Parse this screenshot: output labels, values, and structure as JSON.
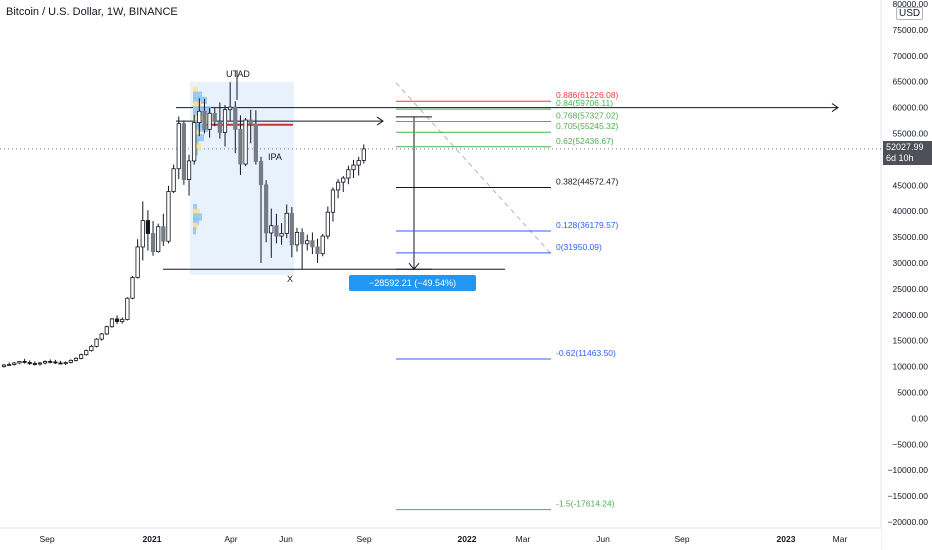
{
  "header": {
    "title": "Bitcoin / U.S. Dollar, 1W, BINANCE",
    "currency": "USD"
  },
  "price_tag": {
    "price": "52027.99",
    "countdown": "6d 10h"
  },
  "measure_label": "−28592.21 (−49.54%) −2859221",
  "annotations": {
    "utad": "UTAD",
    "ipa": "IPA",
    "x": "X"
  },
  "fib_levels": [
    {
      "label": "0.886(61226.08)",
      "value": 61226.08,
      "color": "#f23645"
    },
    {
      "label": "0.84(59706.11)",
      "value": 59706.11,
      "color": "#4caf50"
    },
    {
      "label": "0.768(57327.02)",
      "value": 57327.02,
      "color": "#4caf50"
    },
    {
      "label": "0.705(55245.32)",
      "value": 55245.32,
      "color": "#4caf50"
    },
    {
      "label": "0.62(52436.67)",
      "value": 52436.67,
      "color": "#4caf50"
    },
    {
      "label": "0.382(44572.47)",
      "value": 44572.47,
      "color": "#131722"
    },
    {
      "label": "0.128(36179.57)",
      "value": 36179.57,
      "color": "#2962ff"
    },
    {
      "label": "0(31950.09)",
      "value": 31950.09,
      "color": "#2962ff"
    },
    {
      "label": "-0.62(11463.50)",
      "value": 11463.5,
      "color": "#2962ff"
    },
    {
      "label": "-1.5(-17614.24)",
      "value": -17614.24,
      "color": "#4caf50"
    }
  ],
  "chart_data": {
    "type": "candlestick",
    "symbol": "Bitcoin / U.S. Dollar",
    "interval": "1W",
    "exchange": "BINANCE",
    "ylim": [
      -20000,
      80000
    ],
    "y_ticks": [
      "80000.00",
      "75000.00",
      "70000.00",
      "65000.00",
      "60000.00",
      "55000.00",
      "50000.00",
      "45000.00",
      "40000.00",
      "35000.00",
      "30000.00",
      "25000.00",
      "20000.00",
      "15000.00",
      "10000.00",
      "5000.00",
      "0.00",
      "−5000.00",
      "−10000.00",
      "−15000.00",
      "−20000.00"
    ],
    "x_ticks": [
      "Sep",
      "2021",
      "Apr",
      "Jun",
      "Sep",
      "2022",
      "Mar",
      "Jun",
      "Sep",
      "2023",
      "Mar"
    ],
    "candles": [
      [
        10000,
        10500,
        9800,
        10300
      ],
      [
        10300,
        10800,
        10100,
        10400
      ],
      [
        10400,
        10900,
        10200,
        10700
      ],
      [
        10700,
        11100,
        10500,
        11000
      ],
      [
        11000,
        11500,
        10600,
        10800
      ],
      [
        10800,
        11200,
        10300,
        10600
      ],
      [
        10600,
        11000,
        10200,
        10500
      ],
      [
        10500,
        10900,
        10200,
        10700
      ],
      [
        10700,
        11200,
        10400,
        11000
      ],
      [
        11000,
        11400,
        10600,
        10900
      ],
      [
        10900,
        11300,
        10500,
        10700
      ],
      [
        10700,
        11100,
        10400,
        10600
      ],
      [
        10600,
        11000,
        10300,
        10800
      ],
      [
        10800,
        11400,
        10600,
        11200
      ],
      [
        11200,
        11800,
        11000,
        11600
      ],
      [
        11600,
        12500,
        11400,
        12300
      ],
      [
        12300,
        13300,
        12100,
        13100
      ],
      [
        13100,
        14200,
        12900,
        13900
      ],
      [
        13900,
        15500,
        13700,
        15300
      ],
      [
        15300,
        16500,
        15000,
        16300
      ],
      [
        16300,
        17900,
        16100,
        17700
      ],
      [
        17700,
        19400,
        17500,
        19200
      ],
      [
        19200,
        19900,
        18200,
        18700
      ],
      [
        18700,
        19500,
        18300,
        19100
      ],
      [
        19100,
        23400,
        18900,
        23200
      ],
      [
        23200,
        27500,
        23000,
        27200
      ],
      [
        27200,
        34600,
        27000,
        33100
      ],
      [
        33100,
        41900,
        30500,
        38200
      ],
      [
        38200,
        40200,
        32400,
        35700
      ],
      [
        35700,
        38100,
        31400,
        32200
      ],
      [
        32200,
        37600,
        32000,
        37000
      ],
      [
        37000,
        39500,
        33300,
        34200
      ],
      [
        34200,
        44900,
        33800,
        43800
      ],
      [
        43800,
        49000,
        43500,
        48200
      ],
      [
        48200,
        58300,
        46200,
        56900
      ],
      [
        56900,
        57500,
        45100,
        46100
      ],
      [
        46100,
        50900,
        43000,
        49700
      ],
      [
        49700,
        58600,
        49000,
        57100
      ],
      [
        57100,
        61800,
        54500,
        59300
      ],
      [
        59300,
        61700,
        55000,
        55800
      ],
      [
        55800,
        59900,
        54200,
        58900
      ],
      [
        58900,
        60000,
        56400,
        57300
      ],
      [
        57300,
        61000,
        54000,
        55200
      ],
      [
        55200,
        60500,
        52500,
        59600
      ],
      [
        59600,
        64900,
        57500,
        60100
      ],
      [
        60100,
        61200,
        51200,
        55800
      ],
      [
        55800,
        58500,
        47000,
        49100
      ],
      [
        49100,
        58000,
        48700,
        57600
      ],
      [
        57600,
        59600,
        53100,
        56800
      ],
      [
        56800,
        59500,
        49000,
        49600
      ],
      [
        49600,
        50500,
        30000,
        45100
      ],
      [
        45100,
        46000,
        34000,
        35800
      ],
      [
        35800,
        40500,
        31000,
        37200
      ],
      [
        37200,
        39500,
        33800,
        35200
      ],
      [
        35200,
        37700,
        33500,
        35700
      ],
      [
        35700,
        41300,
        34800,
        39600
      ],
      [
        39600,
        40800,
        31100,
        33500
      ],
      [
        33500,
        36800,
        32200,
        35900
      ],
      [
        35900,
        36700,
        28800,
        33700
      ],
      [
        33700,
        35500,
        32400,
        34300
      ],
      [
        34300,
        35900,
        31700,
        33100
      ],
      [
        33100,
        34700,
        30000,
        31800
      ],
      [
        31800,
        35600,
        31300,
        35200
      ],
      [
        35200,
        40900,
        34600,
        39800
      ],
      [
        39800,
        44600,
        38000,
        44100
      ],
      [
        44100,
        46200,
        42500,
        45600
      ],
      [
        45600,
        46800,
        43700,
        46400
      ],
      [
        46400,
        48800,
        45200,
        48000
      ],
      [
        48000,
        49900,
        46400,
        48900
      ],
      [
        48900,
        50500,
        46900,
        49800
      ],
      [
        49800,
        52900,
        49200,
        52028
      ]
    ]
  }
}
